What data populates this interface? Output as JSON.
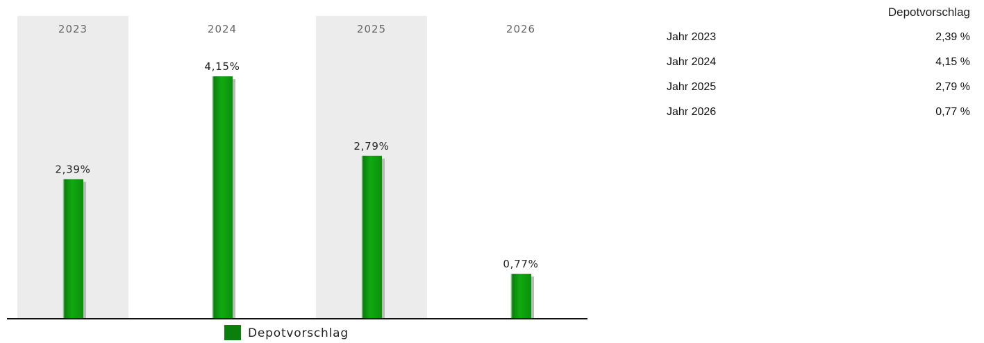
{
  "chart_data": {
    "type": "bar",
    "categories": [
      "2023",
      "2024",
      "2025",
      "2026"
    ],
    "series": [
      {
        "name": "Depotvorschlag",
        "values": [
          2.39,
          4.15,
          2.79,
          0.77
        ],
        "labels": [
          "2,39%",
          "4,15%",
          "2,79%",
          "0,77%"
        ]
      }
    ],
    "ylim": [
      0,
      5
    ],
    "grid": false,
    "legend": {
      "placement": "bottom-center",
      "entries": [
        "Depotvorschlag"
      ]
    },
    "colors": {
      "bar": "#10aa10",
      "bar_dark": "#0b7f0b",
      "bar_shadow": "#b9b9b9",
      "band": "#ececec",
      "axis": "#111111",
      "category_text": "#666666"
    }
  },
  "table": {
    "header": "Depotvorschlag",
    "rows": [
      {
        "label": "Jahr 2023",
        "value": "2,39 %"
      },
      {
        "label": "Jahr 2024",
        "value": "4,15 %"
      },
      {
        "label": "Jahr 2025",
        "value": "2,79 %"
      },
      {
        "label": "Jahr 2026",
        "value": "0,77 %"
      }
    ]
  }
}
